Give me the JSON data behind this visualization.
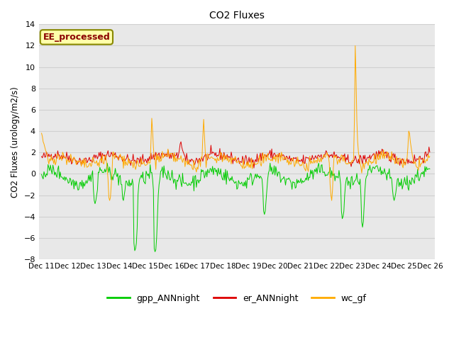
{
  "title": "CO2 Fluxes",
  "ylabel": "CO2 Fluxes (urology/m2/s)",
  "ylim": [
    -8,
    14
  ],
  "yticks": [
    -8,
    -6,
    -4,
    -2,
    0,
    2,
    4,
    6,
    8,
    10,
    12,
    14
  ],
  "xlabel_ticks": [
    "Dec 11",
    "Dec 12",
    "Dec 13",
    "Dec 14",
    "Dec 15",
    "Dec 16",
    "Dec 17",
    "Dec 18",
    "Dec 19",
    "Dec 20",
    "Dec 21",
    "Dec 22",
    "Dec 23",
    "Dec 24",
    "Dec 25",
    "Dec 26"
  ],
  "fig_bg_color": "#ffffff",
  "plot_bg_color": "#e8e8e8",
  "grid_color": "#d0d0d0",
  "colors": {
    "gpp": "#00cc00",
    "er": "#dd0000",
    "wc": "#ffaa00"
  },
  "legend_labels": [
    "gpp_ANNnight",
    "er_ANNnight",
    "wc_gf"
  ],
  "site_label": "EE_processed",
  "site_label_color": "#8B0000",
  "site_label_bg": "#ffffaa",
  "site_label_edge": "#888800",
  "n_points": 480
}
